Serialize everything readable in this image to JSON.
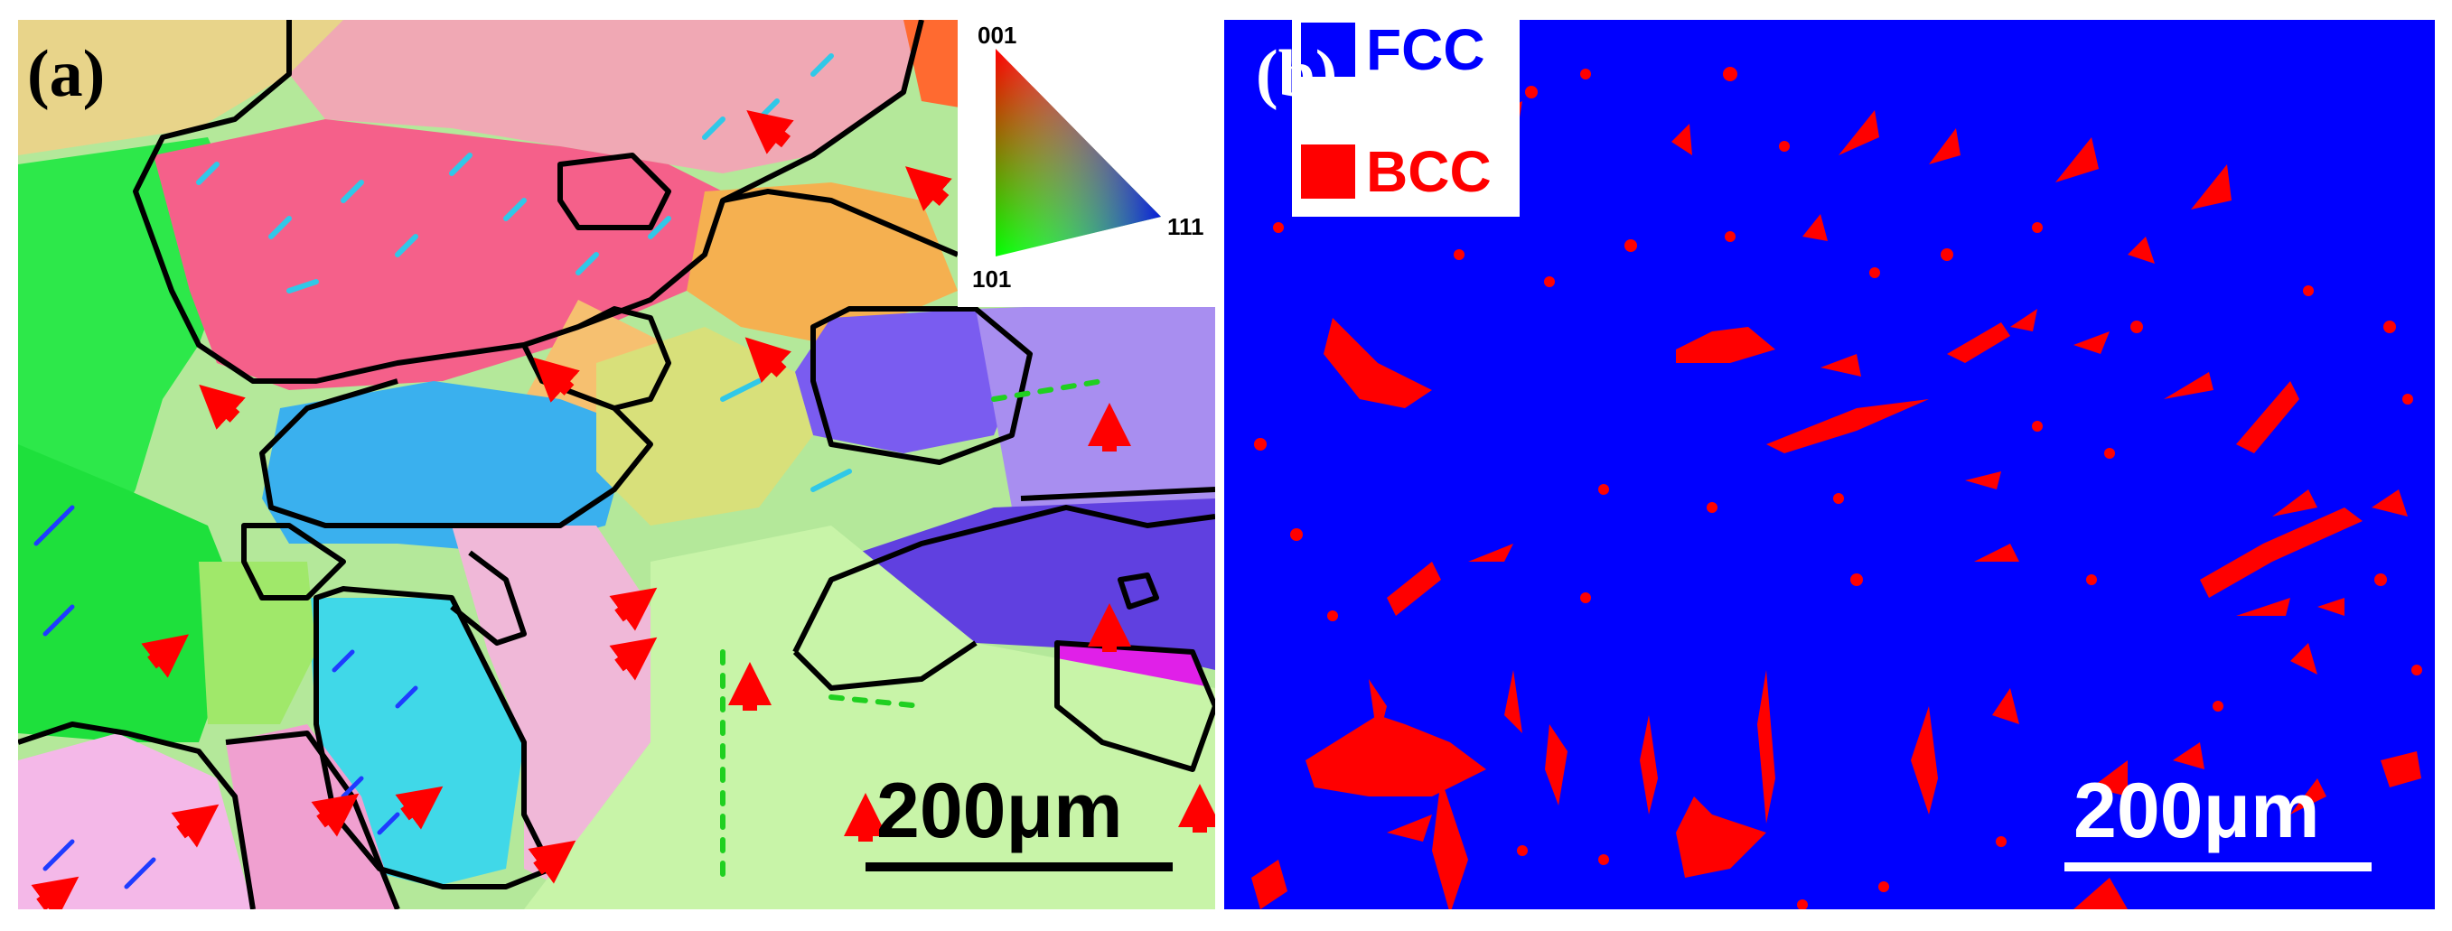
{
  "figure": {
    "panel_a": {
      "label": "(a)",
      "scale_bar": "200μm",
      "ipf_key": {
        "top": "001",
        "left_bottom": "101",
        "right": "111"
      }
    },
    "panel_b": {
      "label": "(b)",
      "scale_bar": "200μm",
      "legend": [
        {
          "label": "FCC",
          "color": "#0000ff"
        },
        {
          "label": "BCC",
          "color": "#ff0000"
        }
      ]
    }
  }
}
